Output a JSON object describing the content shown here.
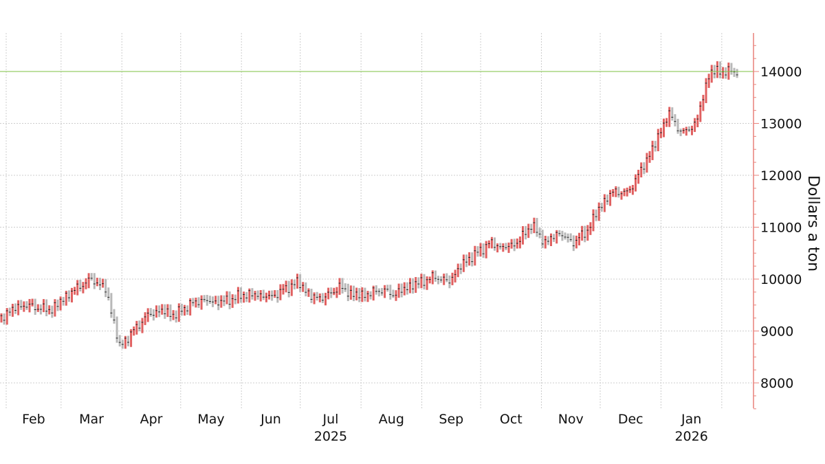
{
  "chart_data": {
    "type": "ohlc",
    "ylabel": "Dollars a ton",
    "ylim": [
      7500,
      14750
    ],
    "yticks": [
      8000,
      9000,
      10000,
      11000,
      12000,
      13000,
      14000
    ],
    "reference_line": {
      "value": 14000,
      "color": "#7dc142"
    },
    "month_labels": [
      "Feb",
      "Mar",
      "Apr",
      "May",
      "Jun",
      "Jul",
      "Aug",
      "Sep",
      "Oct",
      "Nov",
      "Dec",
      "Jan"
    ],
    "year_labels": [
      {
        "month": "Jul",
        "text": "2025"
      },
      {
        "month": "Jan",
        "text": "2026"
      }
    ],
    "colors": {
      "up": "#e06060",
      "down": "#b8b8b8",
      "axis": "#e8807a",
      "grid": "#cccccc"
    },
    "weekly_closes": [
      [
        "2025-01-20",
        9050
      ],
      [
        "2025-01-27",
        9150
      ],
      [
        "2025-02-03",
        9400
      ],
      [
        "2025-02-10",
        9500
      ],
      [
        "2025-02-17",
        9450
      ],
      [
        "2025-02-24",
        9400
      ],
      [
        "2025-03-03",
        9650
      ],
      [
        "2025-03-10",
        9850
      ],
      [
        "2025-03-17",
        10000
      ],
      [
        "2025-03-24",
        9800
      ],
      [
        "2025-03-31",
        8700
      ],
      [
        "2025-04-07",
        9000
      ],
      [
        "2025-04-14",
        9300
      ],
      [
        "2025-04-21",
        9400
      ],
      [
        "2025-04-28",
        9300
      ],
      [
        "2025-05-05",
        9500
      ],
      [
        "2025-05-12",
        9600
      ],
      [
        "2025-05-19",
        9550
      ],
      [
        "2025-05-26",
        9600
      ],
      [
        "2025-06-02",
        9700
      ],
      [
        "2025-06-09",
        9700
      ],
      [
        "2025-06-16",
        9650
      ],
      [
        "2025-06-23",
        9800
      ],
      [
        "2025-06-30",
        9950
      ],
      [
        "2025-07-07",
        9650
      ],
      [
        "2025-07-14",
        9650
      ],
      [
        "2025-07-21",
        9850
      ],
      [
        "2025-07-28",
        9700
      ],
      [
        "2025-08-04",
        9700
      ],
      [
        "2025-08-11",
        9800
      ],
      [
        "2025-08-18",
        9700
      ],
      [
        "2025-08-25",
        9850
      ],
      [
        "2025-09-01",
        9950
      ],
      [
        "2025-09-08",
        10050
      ],
      [
        "2025-09-15",
        9950
      ],
      [
        "2025-09-22",
        10300
      ],
      [
        "2025-09-29",
        10500
      ],
      [
        "2025-10-06",
        10700
      ],
      [
        "2025-10-13",
        10600
      ],
      [
        "2025-10-20",
        10700
      ],
      [
        "2025-10-27",
        11050
      ],
      [
        "2025-11-03",
        10700
      ],
      [
        "2025-11-10",
        10900
      ],
      [
        "2025-11-17",
        10700
      ],
      [
        "2025-11-24",
        10900
      ],
      [
        "2025-12-01",
        11400
      ],
      [
        "2025-12-08",
        11700
      ],
      [
        "2025-12-15",
        11650
      ],
      [
        "2025-12-22",
        12100
      ],
      [
        "2025-12-29",
        12600
      ],
      [
        "2026-01-05",
        13200
      ],
      [
        "2026-01-12",
        12800
      ],
      [
        "2026-01-19",
        13000
      ],
      [
        "2026-01-26",
        14000
      ]
    ]
  }
}
